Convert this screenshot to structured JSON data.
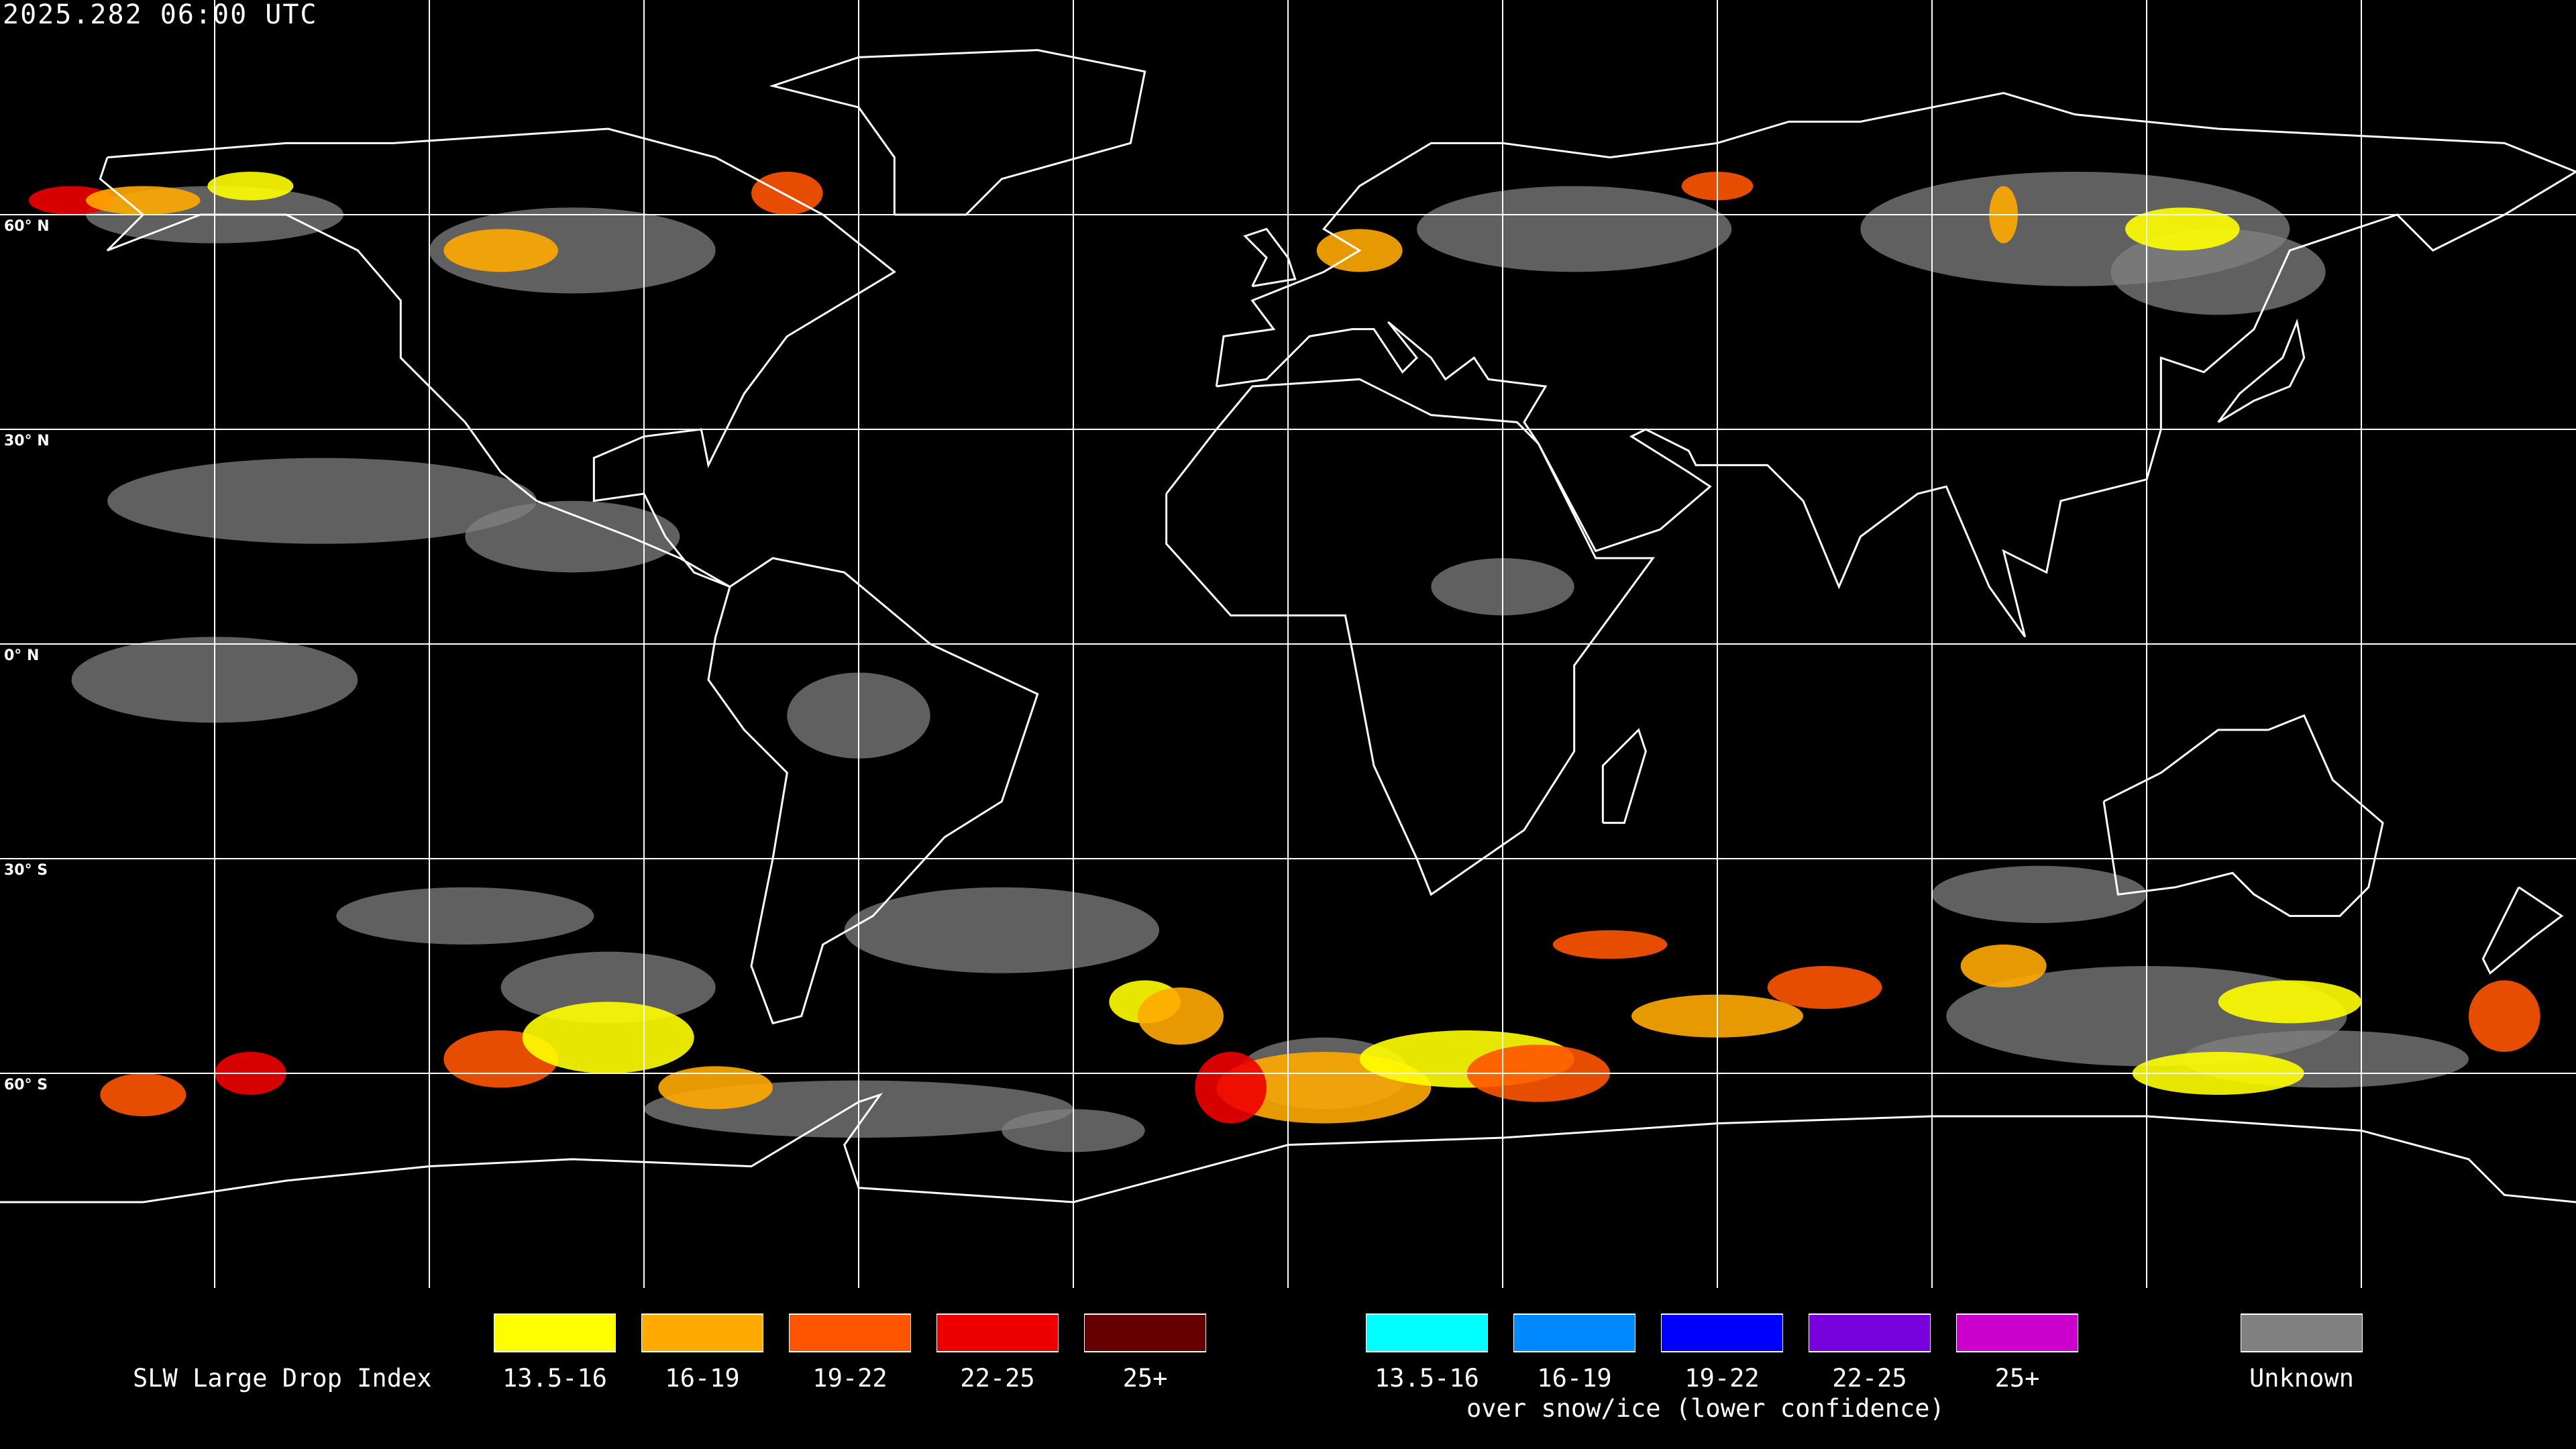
{
  "header": {
    "timestamp": "2025.282 06:00 UTC"
  },
  "map": {
    "projection": "equirectangular",
    "center_longitude": 0,
    "grid_spacing_degrees": 30,
    "latitude_labels": [
      "60° N",
      "30° N",
      "0° N",
      "30° S",
      "60° S"
    ],
    "background_color": "#000000",
    "coastline_color": "#ffffff",
    "grid_color": "#ffffff"
  },
  "legend": {
    "title": "SLW Large Drop Index",
    "primary": [
      {
        "label": "13.5-16",
        "color": "#ffff00"
      },
      {
        "label": "16-19",
        "color": "#ffaa00"
      },
      {
        "label": "19-22",
        "color": "#ff5500"
      },
      {
        "label": "22-25",
        "color": "#ee0000"
      },
      {
        "label": "25+",
        "color": "#660000"
      }
    ],
    "snow_ice": [
      {
        "label": "13.5-16",
        "color": "#00ffff"
      },
      {
        "label": "16-19",
        "color": "#0088ff"
      },
      {
        "label": "19-22",
        "color": "#0000ff"
      },
      {
        "label": "22-25",
        "color": "#7700dd"
      },
      {
        "label": "25+",
        "color": "#cc00cc"
      }
    ],
    "snow_ice_caption": "over snow/ice (lower confidence)",
    "unknown": {
      "label": "Unknown",
      "color": "#808080"
    }
  }
}
